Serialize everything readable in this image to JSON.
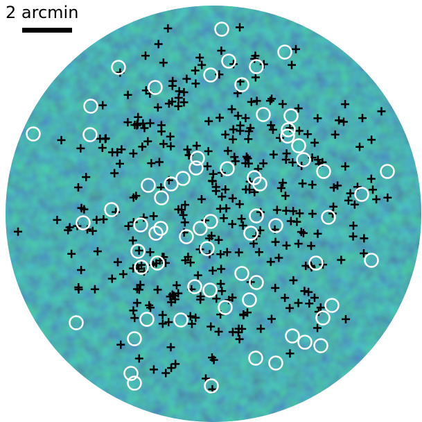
{
  "scale_bar": {
    "label": "2 arcmin"
  }
}
